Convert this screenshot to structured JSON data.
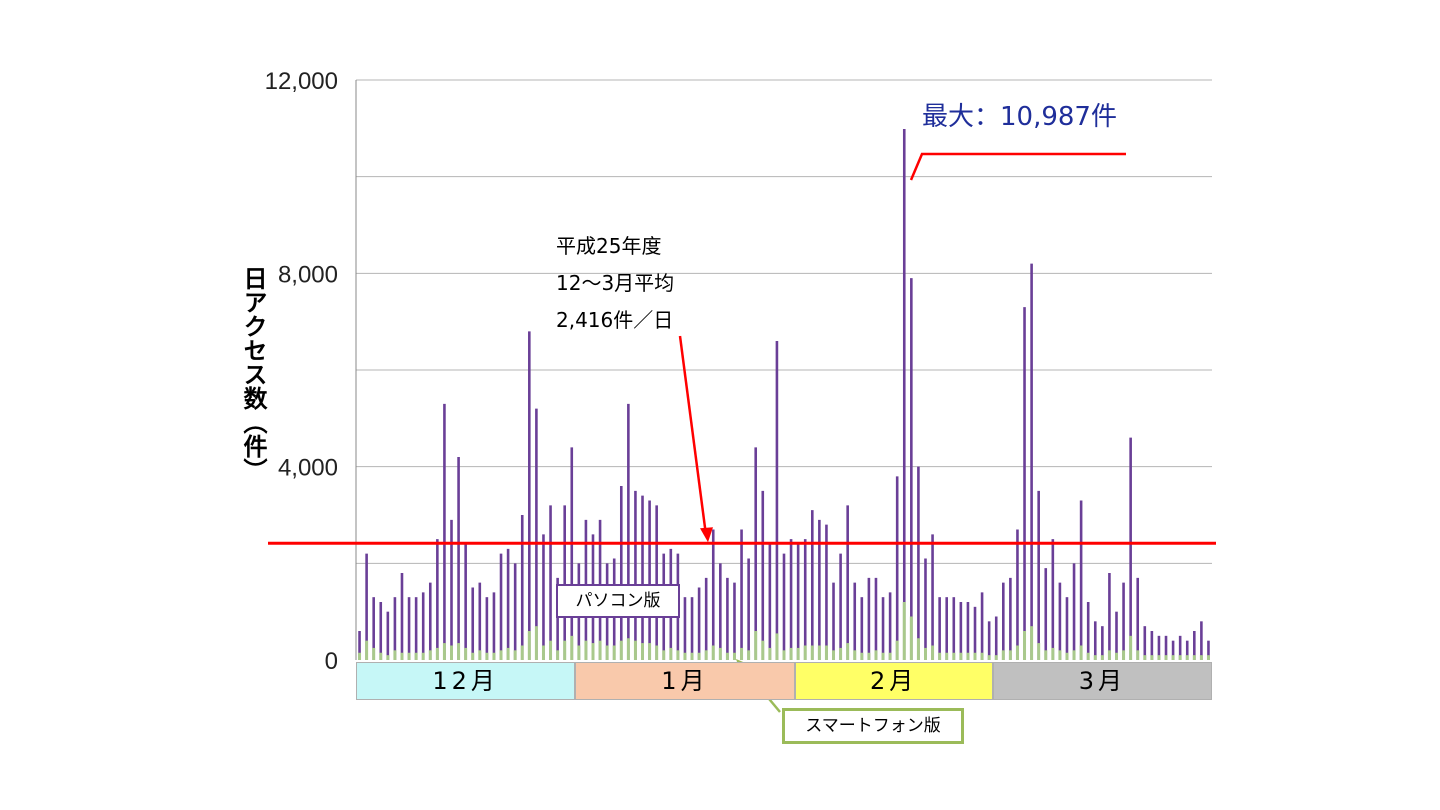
{
  "chart_data": {
    "type": "bar",
    "ylabel": "日アクセス数（件）",
    "ylim": [
      0,
      12000
    ],
    "y_ticks": [
      "0",
      "4,000",
      "8,000",
      "12,000"
    ],
    "grid": true,
    "months": [
      {
        "label": "12月",
        "days": 31,
        "color": "#c6f7f7"
      },
      {
        "label": "1月",
        "days": 31,
        "color": "#f9c9ab"
      },
      {
        "label": "2月",
        "days": 28,
        "color": "#ffff66"
      },
      {
        "label": "3月",
        "days": 31,
        "color": "#c0c0c0"
      }
    ],
    "series": [
      {
        "name": "パソコン版",
        "color": "#6a3f97",
        "values": [
          600,
          2200,
          1300,
          1200,
          1000,
          1300,
          1800,
          1300,
          1300,
          1400,
          1600,
          2500,
          5300,
          2900,
          4200,
          2400,
          1500,
          1600,
          1300,
          1400,
          2200,
          2300,
          2000,
          3000,
          6800,
          5200,
          2600,
          3200,
          1700,
          3200,
          4400,
          2000,
          2900,
          2600,
          2900,
          2000,
          2100,
          3600,
          5300,
          3500,
          3400,
          3300,
          3200,
          2200,
          2300,
          2200,
          1300,
          1300,
          1500,
          1700,
          2700,
          2000,
          1700,
          1600,
          2700,
          2100,
          4400,
          3500,
          2400,
          6600,
          2200,
          2500,
          2400,
          2500,
          3100,
          2900,
          2800,
          1600,
          2200,
          3200,
          1600,
          1300,
          1700,
          1700,
          1300,
          1400,
          3800,
          10987,
          7900,
          4000,
          2100,
          2600,
          1300,
          1300,
          1300,
          1200,
          1200,
          1100,
          1400,
          800,
          900,
          1600,
          1700,
          2700,
          7300,
          8200,
          3500,
          1900,
          2500,
          1600,
          1300,
          2000,
          3300,
          1200,
          800,
          700,
          1800,
          1000,
          1600,
          4600,
          1700,
          700,
          600,
          500,
          500,
          400,
          500,
          400,
          600,
          800,
          400
        ]
      },
      {
        "name": "スマートフォン版",
        "color": "#a9c98c",
        "values": [
          150,
          400,
          250,
          150,
          100,
          200,
          150,
          150,
          150,
          150,
          200,
          250,
          350,
          300,
          350,
          250,
          150,
          200,
          150,
          150,
          200,
          250,
          200,
          300,
          600,
          700,
          300,
          400,
          200,
          400,
          500,
          300,
          400,
          350,
          400,
          300,
          300,
          400,
          450,
          400,
          350,
          350,
          300,
          200,
          250,
          200,
          150,
          150,
          150,
          200,
          300,
          250,
          150,
          150,
          250,
          200,
          600,
          400,
          250,
          550,
          200,
          250,
          250,
          300,
          300,
          300,
          300,
          200,
          250,
          350,
          200,
          150,
          150,
          200,
          150,
          150,
          400,
          1200,
          900,
          450,
          250,
          300,
          150,
          150,
          150,
          150,
          150,
          150,
          150,
          100,
          100,
          200,
          200,
          300,
          600,
          700,
          350,
          200,
          250,
          200,
          150,
          200,
          300,
          150,
          100,
          100,
          200,
          150,
          200,
          500,
          200,
          100,
          100,
          100,
          100,
          100,
          100,
          100,
          100,
          100,
          100
        ]
      }
    ],
    "average": {
      "value": 2416,
      "color": "#ff0000",
      "note_lines": [
        "平成25年度",
        "12～3月平均",
        "2,416件／日"
      ]
    },
    "max_annotation": {
      "text": "最大：10,987件",
      "value": 10987,
      "color": "#1f2e9a"
    }
  }
}
